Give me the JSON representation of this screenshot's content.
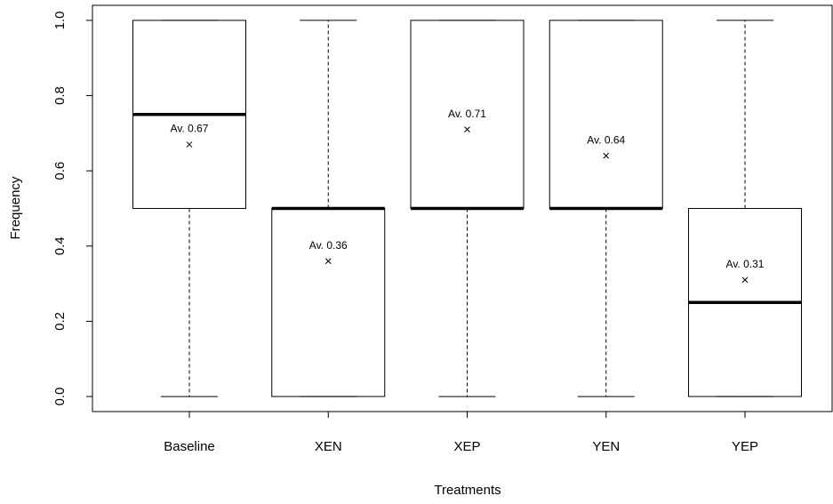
{
  "chart_data": {
    "type": "box",
    "x_label": "Treatments",
    "y_label": "Frequency",
    "categories": [
      "Baseline",
      "XEN",
      "XEP",
      "YEN",
      "YEP"
    ],
    "min": [
      0,
      0,
      0,
      0,
      0
    ],
    "q1": [
      0.5,
      0,
      0.5,
      0.5,
      0
    ],
    "median": [
      0.75,
      0.5,
      0.5,
      0.5,
      0.25
    ],
    "q3": [
      1,
      0.5,
      1,
      1,
      0.5
    ],
    "max": [
      1,
      1,
      1,
      1,
      1
    ],
    "mean": [
      0.67,
      0.36,
      0.71,
      0.64,
      0.31
    ],
    "mean_labels": [
      "Av. 0.67",
      "Av. 0.36",
      "Av. 0.71",
      "Av. 0.64",
      "Av. 0.31"
    ],
    "ylim": [
      -0.04,
      1.04
    ],
    "yticks": [
      {
        "value": 0,
        "label": "0.0"
      },
      0.2,
      0.4,
      0.6,
      0.8,
      {
        "value": 1,
        "label": "1.0"
      }
    ],
    "color": "#000000"
  }
}
